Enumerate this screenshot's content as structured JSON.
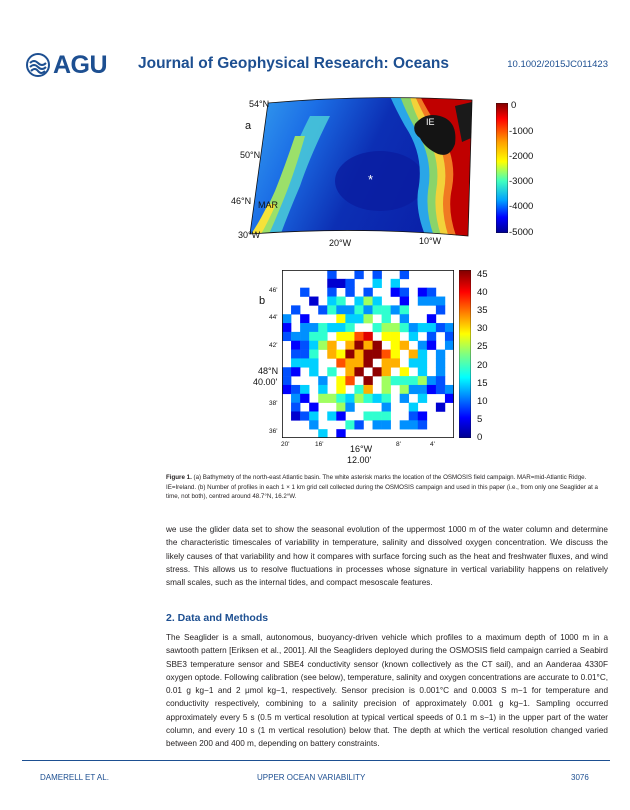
{
  "header": {
    "logo_text": "AGU",
    "journal": "Journal of Geophysical Research: Oceans",
    "doi": "10.1002/2015JC011423"
  },
  "figure": {
    "panel_a": {
      "letter": "a",
      "lat_labels": [
        "54°N",
        "50°N",
        "46°N",
        "30°W"
      ],
      "lon_labels": [
        "20°W",
        "10°W"
      ],
      "annotations": {
        "ie": "IE",
        "mar": "MAR",
        "asterisk": "*"
      },
      "colorbar_ticks": [
        "0",
        "-1000",
        "-2000",
        "-3000",
        "-4000",
        "-5000"
      ],
      "colors": {
        "deep": "#0a1fa8",
        "mid": "#1e90ff",
        "shallow": "#f5e23a",
        "land": "#c00000"
      }
    },
    "panel_b": {
      "letter": "b",
      "y_ticks": [
        "46'",
        "44'",
        "42'",
        "38'",
        "36'"
      ],
      "y_center_label": [
        "48°N",
        "40.00'"
      ],
      "x_ticks": [
        "20'",
        "16'",
        "8'",
        "4'"
      ],
      "x_center_label": [
        "16°W",
        "12.00'"
      ],
      "colorbar_ticks": [
        "45",
        "40",
        "35",
        "30",
        "25",
        "20",
        "15",
        "10",
        "5",
        "0"
      ]
    }
  },
  "caption": {
    "label": "Figure 1.",
    "text": " (a) Bathymetry of the north-east Atlantic basin. The white asterisk marks the location of the OSMOSIS field campaign. MAR=mid-Atlantic Ridge. IE=Ireland. (b) Number of profiles in each 1 × 1 km grid cell collected during the OSMOSIS campaign and used in this paper (i.e., from only one Seaglider at a time, not both), centred around 48.7°N, 16.2°W."
  },
  "body": {
    "para1": "we use the glider data set to show the seasonal evolution of the uppermost 1000 m of the water column and determine the characteristic timescales of variability in temperature, salinity and dissolved oxygen concentration. We discuss the likely causes of that variability and how it compares with surface forcing such as the heat and freshwater fluxes, and wind stress. This allows us to resolve fluctuations in processes whose signature in vertical variability happens on relatively small scales, such as the internal tides, and compact mesoscale features.",
    "section_title": "2. Data and Methods",
    "para2": "The Seaglider is a small, autonomous, buoyancy-driven vehicle which profiles to a maximum depth of 1000 m in a sawtooth pattern [Eriksen et al., 2001]. All the Seagliders deployed during the OSMOSIS field campaign carried a Seabird SBE3 temperature sensor and SBE4 conductivity sensor (known collectively as the CT sail), and an Aanderaa 4330F oxygen optode. Following calibration (see below), temperature, salinity and oxygen concentrations are accurate to 0.01°C, 0.01 g kg−1 and 2 μmol kg−1, respectively. Sensor precision is 0.001°C and 0.0003 S m−1 for temperature and conductivity respectively, combining to a salinity precision of approximately 0.001 g kg−1. Sampling occurred approximately every 5 s (0.5 m vertical resolution at typical vertical speeds of 0.1 m s−1) in the upper part of the water column, and every 10 s (1 m vertical resolution) below that. The depth at which the vertical resolution changed varied between 200 and 400 m, depending on battery constraints."
  },
  "footer": {
    "left": "DAMERELL ET AL.",
    "center": "UPPER OCEAN VARIABILITY",
    "right": "3076"
  }
}
